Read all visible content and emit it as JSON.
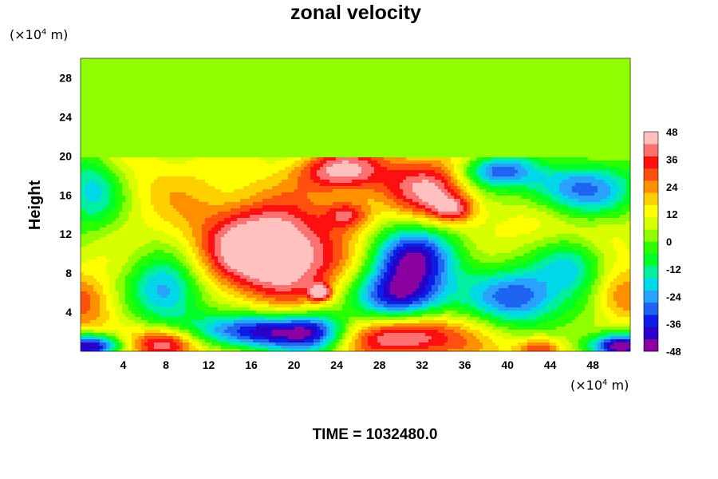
{
  "chart_data": {
    "type": "heatmap",
    "title": "zonal velocity",
    "ylabel": "Height",
    "x_unit": "(×10",
    "x_unit_exp": "4",
    "x_unit_tail": " m)",
    "y_unit": "(×10",
    "y_unit_exp": "4",
    "y_unit_tail": " m)",
    "xlim": [
      0,
      51.5
    ],
    "ylim": [
      0,
      30
    ],
    "x_ticks": [
      "4",
      "8",
      "12",
      "16",
      "20",
      "24",
      "28",
      "32",
      "36",
      "40",
      "44",
      "48"
    ],
    "y_ticks": [
      "4",
      "8",
      "12",
      "16",
      "20",
      "24",
      "28"
    ],
    "time_label": "TIME = 1032480.0",
    "colorbar": {
      "range": [
        -48,
        48
      ],
      "step": 6,
      "labels": [
        "48",
        "36",
        "24",
        "12",
        "0",
        "-12",
        "-24",
        "-36",
        "-48"
      ],
      "colors": [
        "#8a00a0",
        "#2a00c8",
        "#0a1ee6",
        "#1e64f0",
        "#2aa0ff",
        "#00d8e8",
        "#00f0a0",
        "#00ff28",
        "#28ff00",
        "#90ff00",
        "#d8ff00",
        "#ffff00",
        "#ffd000",
        "#ff9000",
        "#ff5010",
        "#ff1010",
        "#ff7070",
        "#ffc0c0"
      ]
    },
    "upper_layer_value": 0,
    "features": [
      {
        "x": 18,
        "y": 10,
        "value": 48,
        "sx": 4.2,
        "sy": 3.2
      },
      {
        "x": 15,
        "y": 11,
        "value": 20,
        "sx": 7,
        "sy": 6
      },
      {
        "x": 30,
        "y": 1.5,
        "value": 50,
        "sx": 4,
        "sy": 1.6
      },
      {
        "x": 8,
        "y": 0.8,
        "value": 48,
        "sx": 2.2,
        "sy": 1.2
      },
      {
        "x": 24,
        "y": 18.5,
        "value": 42,
        "sx": 2.8,
        "sy": 1.5
      },
      {
        "x": 33,
        "y": 16.5,
        "value": 38,
        "sx": 2.5,
        "sy": 2.2
      },
      {
        "x": 25,
        "y": 14,
        "value": 32,
        "sx": 1.5,
        "sy": 1
      },
      {
        "x": 35,
        "y": 14.5,
        "value": 34,
        "sx": 1.5,
        "sy": 1
      },
      {
        "x": 28,
        "y": 17,
        "value": 22,
        "sx": 3,
        "sy": 2.5
      },
      {
        "x": 17,
        "y": 2,
        "value": -42,
        "sx": 5,
        "sy": 1.3
      },
      {
        "x": 30,
        "y": 5.5,
        "value": -44,
        "sx": 3,
        "sy": 2
      },
      {
        "x": 31,
        "y": 9.5,
        "value": -36,
        "sx": 3,
        "sy": 2.2
      },
      {
        "x": 8,
        "y": 6,
        "value": -30,
        "sx": 2.5,
        "sy": 2.5
      },
      {
        "x": 41,
        "y": 5.5,
        "value": -30,
        "sx": 3,
        "sy": 2
      },
      {
        "x": 39,
        "y": 18.5,
        "value": -30,
        "sx": 2.5,
        "sy": 1.2
      },
      {
        "x": 46,
        "y": 16.5,
        "value": -28,
        "sx": 4,
        "sy": 2
      },
      {
        "x": 1,
        "y": 0.5,
        "value": -48,
        "sx": 2,
        "sy": 0.9
      },
      {
        "x": 50.5,
        "y": 0.5,
        "value": -48,
        "sx": 2,
        "sy": 0.9
      },
      {
        "x": 1,
        "y": 17,
        "value": -16,
        "sx": 2,
        "sy": 3
      },
      {
        "x": 43,
        "y": 0.3,
        "value": 36,
        "sx": 1.5,
        "sy": 0.8
      },
      {
        "x": 50.5,
        "y": 5.5,
        "value": 28,
        "sx": 2,
        "sy": 2
      },
      {
        "x": 0.5,
        "y": 5,
        "value": 26,
        "sx": 2,
        "sy": 2
      },
      {
        "x": 43,
        "y": 12,
        "value": 16,
        "sx": 3,
        "sy": 3
      },
      {
        "x": 44.5,
        "y": 19.5,
        "value": 14,
        "sx": 2,
        "sy": 1
      },
      {
        "x": 22.5,
        "y": 6,
        "value": 40,
        "sx": 0.7,
        "sy": 0.6
      },
      {
        "x": 22,
        "y": 2,
        "value": -14,
        "sx": 2,
        "sy": 1.5
      },
      {
        "x": 46,
        "y": 9,
        "value": -20,
        "sx": 2.5,
        "sy": 2
      },
      {
        "x": 12,
        "y": 16,
        "value": 6,
        "sx": 3,
        "sy": 3
      }
    ]
  }
}
